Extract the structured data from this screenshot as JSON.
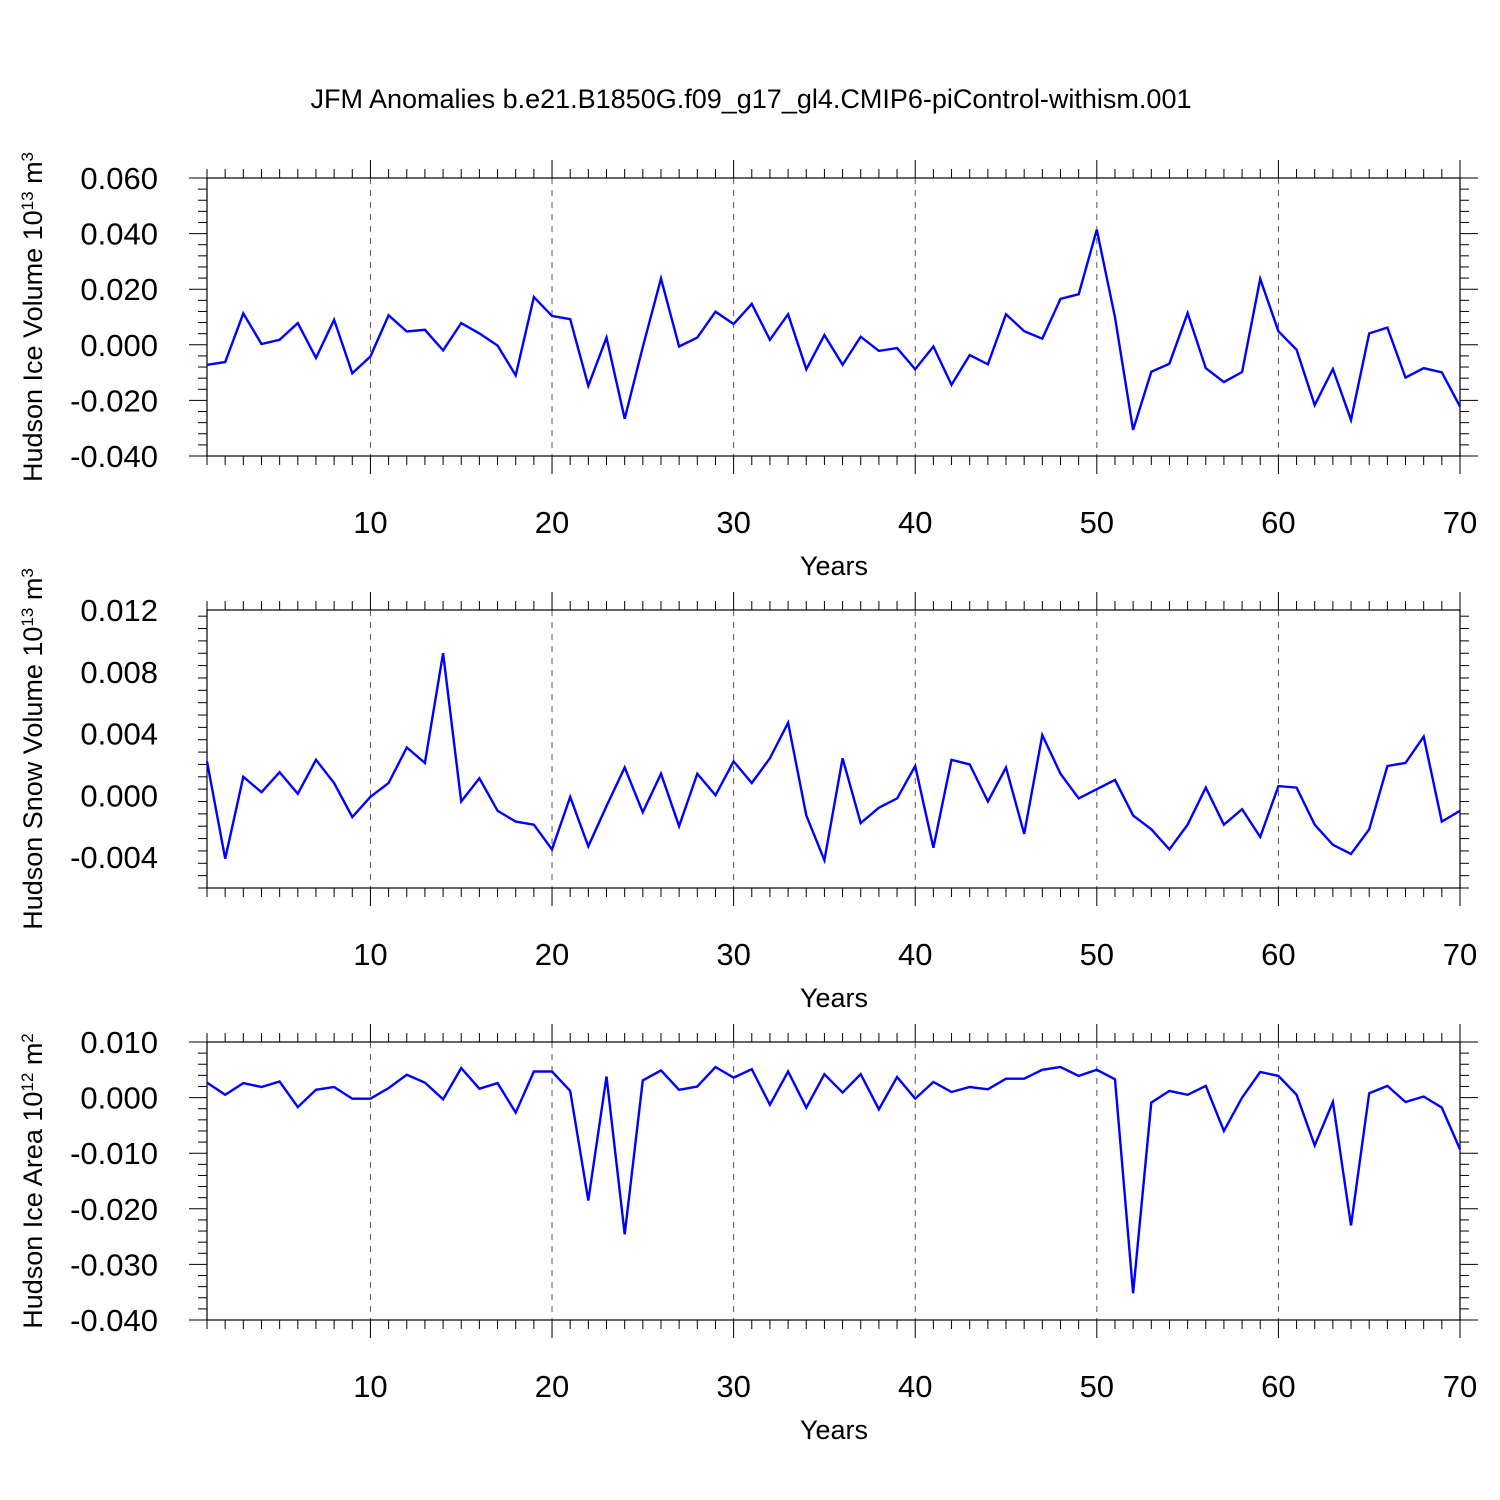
{
  "title": "JFM Anomalies b.e21.B1850G.f09_g17_gl4.CMIP6-piControl-withism.001",
  "chart_data": [
    {
      "type": "line",
      "xlabel": "Years",
      "ylabel": {
        "text": "Hudson Ice Volume 10",
        "sup1": "13",
        "unit": " m",
        "sup2": "3"
      },
      "xlim": [
        1,
        70
      ],
      "ylim": [
        -0.04,
        0.06
      ],
      "x_ticks": [
        10,
        20,
        30,
        40,
        50,
        60,
        70
      ],
      "x_tick_labels": [
        "10",
        "20",
        "30",
        "40",
        "50",
        "60",
        "70"
      ],
      "y_ticks": [
        -0.04,
        -0.02,
        0.0,
        0.02,
        0.04,
        0.06
      ],
      "y_tick_labels": [
        "-0.040",
        "-0.020",
        "0.000",
        "0.020",
        "0.040",
        "0.060"
      ],
      "grid": "vertical dashed at major x ticks",
      "line_color": "#0000ff",
      "x_start": 1,
      "values": [
        -0.0072,
        -0.0062,
        0.0113,
        0.0003,
        0.0018,
        0.0078,
        -0.0047,
        0.009,
        -0.0102,
        -0.0042,
        0.0106,
        0.0048,
        0.0054,
        -0.002,
        0.0078,
        0.0041,
        -0.0003,
        -0.011,
        0.0172,
        0.0104,
        0.0092,
        -0.0148,
        0.0026,
        -0.0266,
        -0.0008,
        0.0238,
        -0.0006,
        0.0026,
        0.0119,
        0.0075,
        0.0147,
        0.0018,
        0.011,
        -0.0088,
        0.0035,
        -0.0072,
        0.0029,
        -0.0022,
        -0.0012,
        -0.0088,
        -0.0006,
        -0.0144,
        -0.0037,
        -0.007,
        0.011,
        0.0049,
        0.0022,
        0.0165,
        0.0182,
        0.0414,
        0.0099,
        -0.0306,
        -0.0097,
        -0.0068,
        0.0114,
        -0.0084,
        -0.0134,
        -0.0098,
        0.0237,
        0.0049,
        -0.0018,
        -0.0217,
        -0.0087,
        -0.027,
        0.0041,
        0.0062,
        -0.0118,
        -0.0084,
        -0.0099,
        -0.0222
      ]
    },
    {
      "type": "line",
      "xlabel": "Years",
      "ylabel": {
        "text": "Hudson Snow Volume 10",
        "sup1": "13",
        "unit": " m",
        "sup2": "3"
      },
      "xlim": [
        1,
        70
      ],
      "ylim": [
        -0.006,
        0.012
      ],
      "x_ticks": [
        10,
        20,
        30,
        40,
        50,
        60,
        70
      ],
      "x_tick_labels": [
        "10",
        "20",
        "30",
        "40",
        "50",
        "60",
        "70"
      ],
      "y_ticks": [
        -0.004,
        0.0,
        0.004,
        0.008,
        0.012
      ],
      "y_tick_labels": [
        "-0.004",
        "0.000",
        "0.004",
        "0.008",
        "0.012"
      ],
      "grid": "vertical dashed at major x ticks",
      "line_color": "#0000ff",
      "x_start": 1,
      "values": [
        0.0022,
        -0.0041,
        0.0012,
        0.0002,
        0.0015,
        0.0001,
        0.0023,
        0.0008,
        -0.0014,
        -0.0001,
        0.0008,
        0.0031,
        0.0021,
        0.0092,
        -0.0004,
        0.0011,
        -0.001,
        -0.0017,
        -0.0019,
        -0.0035,
        -0.0001,
        -0.0033,
        -0.0007,
        0.0018,
        -0.0011,
        0.0014,
        -0.002,
        0.0014,
        0.0,
        0.0022,
        0.0008,
        0.0024,
        0.0047,
        -0.0013,
        -0.0042,
        0.0024,
        -0.0018,
        -0.0008,
        -0.0002,
        0.0019,
        -0.0034,
        0.0023,
        0.002,
        -0.0004,
        0.0018,
        -0.0025,
        0.0039,
        0.0014,
        -0.0002,
        0.0004,
        0.001,
        -0.0013,
        -0.0022,
        -0.0035,
        -0.0019,
        0.0005,
        -0.0019,
        -0.0009,
        -0.0027,
        0.0006,
        0.0005,
        -0.0019,
        -0.0032,
        -0.0038,
        -0.0022,
        0.0019,
        0.0021,
        0.0038,
        -0.0017,
        -0.001
      ]
    },
    {
      "type": "line",
      "xlabel": "Years",
      "ylabel": {
        "text": "Hudson Ice Area 10",
        "sup1": "12",
        "unit": " m",
        "sup2": "2"
      },
      "xlim": [
        1,
        70
      ],
      "ylim": [
        -0.04,
        0.01
      ],
      "x_ticks": [
        10,
        20,
        30,
        40,
        50,
        60,
        70
      ],
      "x_tick_labels": [
        "10",
        "20",
        "30",
        "40",
        "50",
        "60",
        "70"
      ],
      "y_ticks": [
        -0.04,
        -0.03,
        -0.02,
        -0.01,
        0.0,
        0.01
      ],
      "y_tick_labels": [
        "-0.040",
        "-0.030",
        "-0.020",
        "-0.010",
        "0.000",
        "0.010"
      ],
      "grid": "vertical dashed at major x ticks",
      "line_color": "#0000ff",
      "x_start": 1,
      "values": [
        0.0027,
        0.0005,
        0.0026,
        0.0019,
        0.0029,
        -0.0017,
        0.0014,
        0.0019,
        -0.0002,
        -0.0002,
        0.0017,
        0.0041,
        0.0027,
        -0.0003,
        0.0053,
        0.0016,
        0.0026,
        -0.0027,
        0.0047,
        0.0047,
        0.0012,
        -0.0185,
        0.0038,
        -0.0246,
        0.0031,
        0.0049,
        0.0014,
        0.002,
        0.0055,
        0.0036,
        0.0051,
        -0.0013,
        0.0047,
        -0.0018,
        0.0042,
        0.0009,
        0.0042,
        -0.0021,
        0.0037,
        -0.0002,
        0.0028,
        0.001,
        0.0019,
        0.0015,
        0.0034,
        0.0034,
        0.005,
        0.0055,
        0.0039,
        0.005,
        0.0033,
        -0.0352,
        -0.0009,
        0.0012,
        0.0005,
        0.0021,
        -0.006,
        0.0,
        0.0046,
        0.0039,
        0.0005,
        -0.0086,
        -0.0008,
        -0.023,
        0.0008,
        0.0021,
        -0.0008,
        0.0002,
        -0.0018,
        -0.0093
      ]
    }
  ]
}
